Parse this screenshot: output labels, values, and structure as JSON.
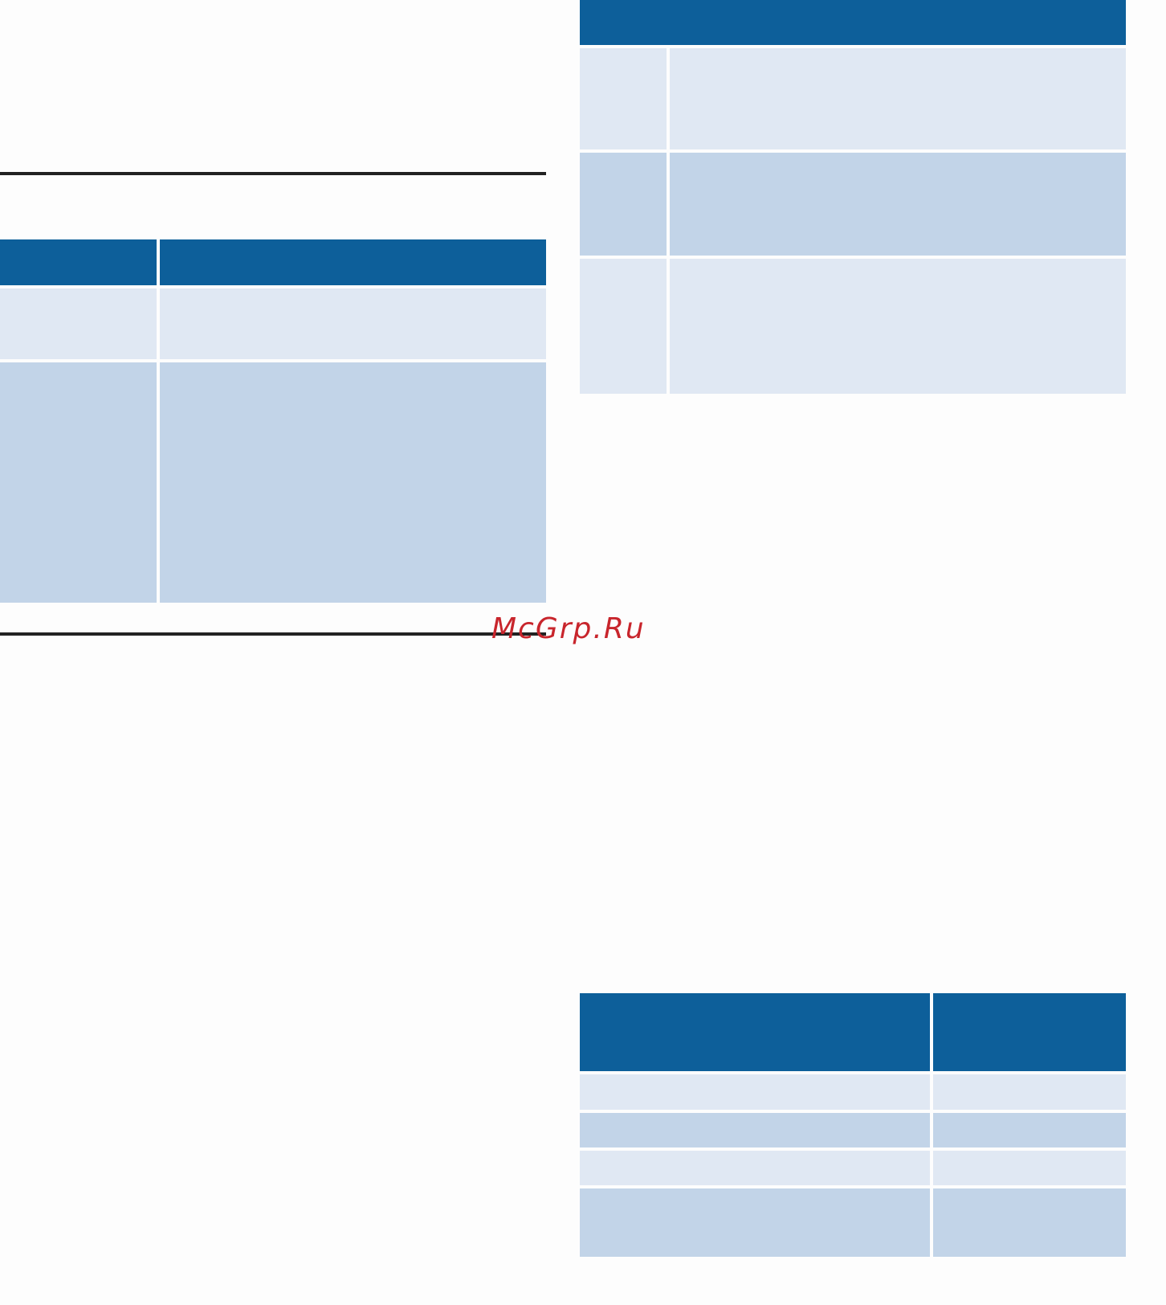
{
  "watermark": "McGrp.Ru"
}
